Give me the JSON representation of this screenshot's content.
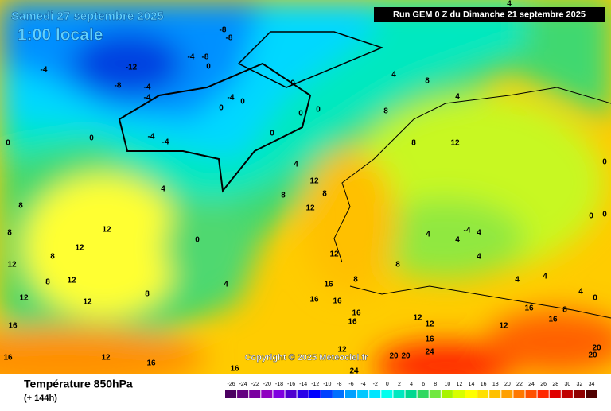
{
  "header": {
    "title": "Samedi 27 septembre 2025",
    "time": "1:00 locale",
    "run": "Run GEM 0 Z du Dimanche 21 septembre 2025"
  },
  "map": {
    "copyright": "Copyright © 2025 Meteociel.fr",
    "contour_labels": [
      -12,
      -8,
      -4,
      -4,
      -4,
      -4,
      -8,
      -8,
      -8,
      0,
      -4,
      0,
      0,
      0,
      0,
      0,
      -4,
      -4,
      0,
      0,
      0,
      4,
      4,
      4,
      8,
      4,
      8,
      12,
      12,
      8,
      8,
      12,
      12,
      12,
      8,
      12,
      12,
      8,
      12,
      12,
      8,
      0,
      4,
      8,
      8,
      12,
      8,
      16,
      16,
      16,
      16,
      16,
      8,
      4,
      4,
      -4,
      4,
      4,
      4,
      4,
      4,
      0,
      16,
      16,
      8,
      12,
      12,
      12,
      16,
      16,
      12,
      16,
      16,
      12,
      20,
      20,
      24,
      16,
      24,
      20,
      20,
      0,
      0,
      0,
      4,
      8
    ]
  },
  "footer": {
    "variable": "Température 850hPa",
    "lead": "(+ 144h)",
    "scale": [
      {
        "value": -26,
        "color": "#4b0060"
      },
      {
        "value": -24,
        "color": "#640080"
      },
      {
        "value": -22,
        "color": "#7a00a0"
      },
      {
        "value": -20,
        "color": "#9000c0"
      },
      {
        "value": -18,
        "color": "#8000e0"
      },
      {
        "value": -16,
        "color": "#5000d0"
      },
      {
        "value": -14,
        "color": "#2a00e8"
      },
      {
        "value": -12,
        "color": "#0000ff"
      },
      {
        "value": -10,
        "color": "#0040ff"
      },
      {
        "value": -8,
        "color": "#0070ff"
      },
      {
        "value": -6,
        "color": "#00a0ff"
      },
      {
        "value": -4,
        "color": "#00c8ff"
      },
      {
        "value": -2,
        "color": "#00e6ff"
      },
      {
        "value": 0,
        "color": "#00ffee"
      },
      {
        "value": 2,
        "color": "#00e8c0"
      },
      {
        "value": 4,
        "color": "#00d890"
      },
      {
        "value": 6,
        "color": "#30d860"
      },
      {
        "value": 8,
        "color": "#70e840"
      },
      {
        "value": 10,
        "color": "#a8f400"
      },
      {
        "value": 12,
        "color": "#d8ff00"
      },
      {
        "value": 14,
        "color": "#ffff00"
      },
      {
        "value": 16,
        "color": "#ffe000"
      },
      {
        "value": 18,
        "color": "#ffc000"
      },
      {
        "value": 20,
        "color": "#ffa000"
      },
      {
        "value": 22,
        "color": "#ff7800"
      },
      {
        "value": 24,
        "color": "#ff5000"
      },
      {
        "value": 26,
        "color": "#ff2800"
      },
      {
        "value": 28,
        "color": "#e00000"
      },
      {
        "value": 30,
        "color": "#c00000"
      },
      {
        "value": 32,
        "color": "#900000"
      },
      {
        "value": 34,
        "color": "#500000"
      }
    ]
  }
}
